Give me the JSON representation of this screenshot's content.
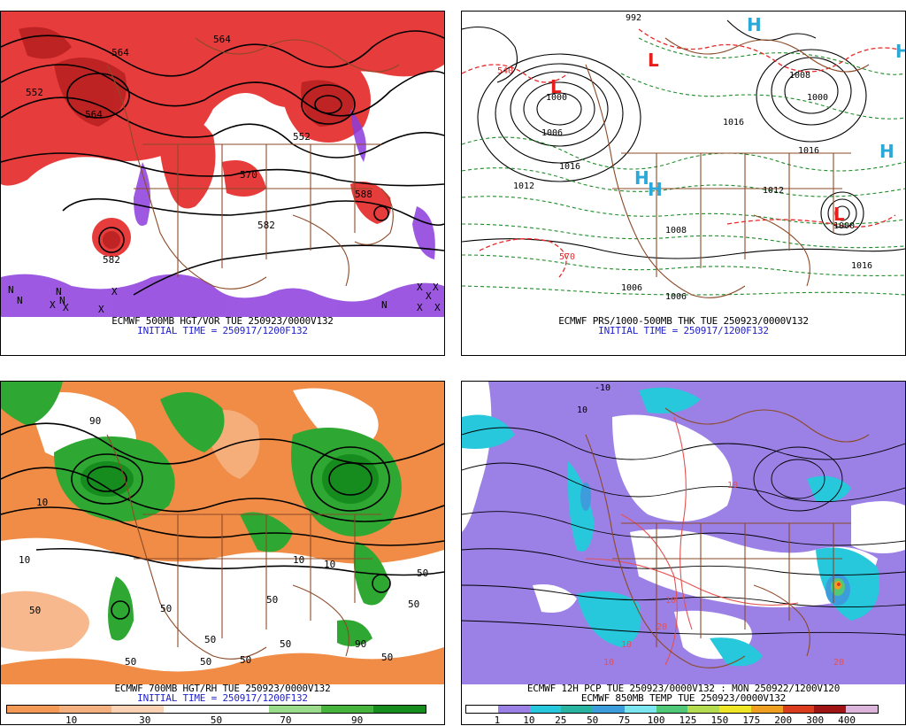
{
  "panels": {
    "top_left": {
      "caption1": "ECMWF 500MB HGT/VOR TUE 250923/0000V132",
      "caption2": "INITIAL TIME = 250917/1200F132",
      "labels": [
        "552",
        "564",
        "564",
        "552",
        "564",
        "570",
        "582",
        "582",
        "588"
      ],
      "marks": [
        "N",
        "N",
        "X",
        "X",
        "N",
        "N",
        "X",
        "X",
        "X",
        "X",
        "X",
        "X",
        "X",
        "N"
      ]
    },
    "top_right": {
      "caption1": "ECMWF PRS/1000-500MB THK TUE 250923/0000V132",
      "caption2": "INITIAL TIME = 250917/1200F132",
      "labels": [
        "992",
        "540",
        "1000",
        "1006",
        "1012",
        "1016",
        "1000",
        "1016",
        "1008",
        "1008",
        "1016",
        "1012",
        "1006",
        "1006",
        "1016",
        "1000",
        "570"
      ],
      "highs": [
        "H",
        "H",
        "H",
        "H",
        "H"
      ],
      "lows": [
        "L",
        "L",
        "L"
      ]
    },
    "bottom_left": {
      "caption1": "ECMWF 700MB HGT/RH TUE 250923/0000V132",
      "caption2": "INITIAL TIME = 250917/1200F132",
      "labels": [
        "10",
        "50",
        "50",
        "10",
        "50",
        "50",
        "50",
        "90",
        "50",
        "50",
        "10",
        "50",
        "90",
        "50",
        "10",
        "50",
        "50"
      ],
      "legend": {
        "colors": [
          "#f59a56",
          "#f5b080",
          "#fbd3b4",
          "#ffffff",
          "#ffffff",
          "#9bdc8c",
          "#46b43c",
          "#168c1e"
        ],
        "ticks": [
          "10",
          "30",
          "50",
          "70",
          "90"
        ]
      }
    },
    "bottom_right": {
      "caption1": "ECMWF 12H PCP TUE 250923/0000V132 : MON 250922/1200V120",
      "caption2": "ECMWF 850MB TEMP TUE 250923/0000V132",
      "labels": [
        "-10",
        "10",
        "10",
        "10",
        "20",
        "20",
        "10",
        "10"
      ],
      "legend": {
        "colors": [
          "#ffffff",
          "#9b80e6",
          "#28c8dc",
          "#28b4a0",
          "#3c9cdc",
          "#7ce6f0",
          "#50c878",
          "#b4dc50",
          "#f0e628",
          "#f0a020",
          "#dc3c1e",
          "#a01414",
          "#dcb4dc"
        ],
        "ticks": [
          "1",
          "10",
          "25",
          "50",
          "75",
          "100",
          "125",
          "150",
          "175",
          "200",
          "300",
          "400"
        ]
      }
    }
  }
}
